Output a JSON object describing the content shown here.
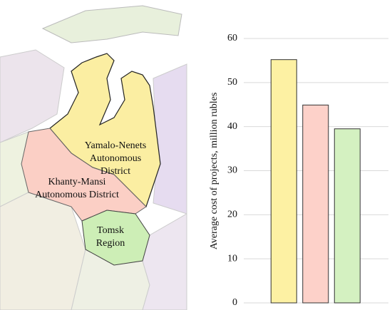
{
  "map": {
    "regions": [
      {
        "label": [
          "Yamalo-Nenets",
          "Autonomous",
          "District"
        ],
        "color": "#fbeea2"
      },
      {
        "label": [
          "Khanty-Mansi",
          "Autonomous District"
        ],
        "color": "#fbcfc5"
      },
      {
        "label": [
          "Tomsk",
          "Region"
        ],
        "color": "#cdeeb6"
      }
    ]
  },
  "chart_data": {
    "type": "bar",
    "ylabel": "Average cost of projects, million rubles",
    "categories": [
      null,
      null,
      null
    ],
    "values": [
      55.2,
      44.9,
      39.5
    ],
    "colors": [
      "#fdf1a3",
      "#fdd1c9",
      "#d4f1c1"
    ],
    "ylim": [
      0,
      60
    ],
    "yticks": [
      0,
      10,
      20,
      30,
      40,
      50,
      60
    ],
    "grid": true
  }
}
